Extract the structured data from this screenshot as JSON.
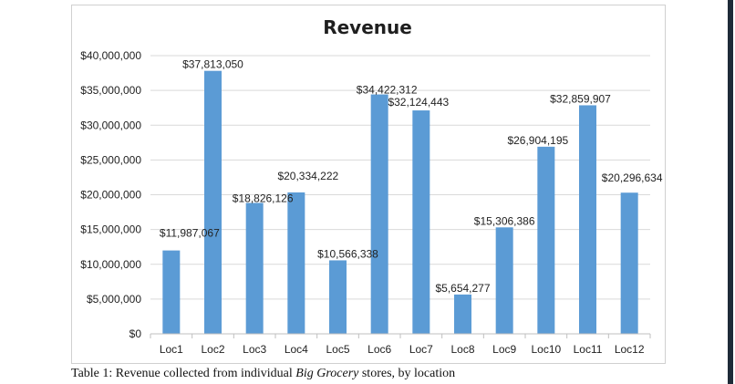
{
  "chart_data": {
    "type": "bar",
    "title": "Revenue",
    "xlabel": "",
    "ylabel": "",
    "categories": [
      "Loc1",
      "Loc2",
      "Loc3",
      "Loc4",
      "Loc5",
      "Loc6",
      "Loc7",
      "Loc8",
      "Loc9",
      "Loc10",
      "Loc11",
      "Loc12"
    ],
    "values": [
      11987067,
      37813050,
      18826126,
      20334222,
      10566338,
      34422312,
      32124443,
      5654277,
      15306386,
      26904195,
      32859907,
      20296634
    ],
    "value_labels": [
      "$11,987,067",
      "$37,813,050",
      "$18,826,126",
      "$20,334,222",
      "$10,566,338",
      "$34,422,312",
      "$32,124,443",
      "$5,654,277",
      "$15,306,386",
      "$26,904,195",
      "$32,859,907",
      "$20,296,634"
    ],
    "ylim": [
      0,
      40000000
    ],
    "yticks": [
      0,
      5000000,
      10000000,
      15000000,
      20000000,
      25000000,
      30000000,
      35000000,
      40000000
    ],
    "ytick_labels": [
      "$0",
      "$5,000,000",
      "$10,000,000",
      "$15,000,000",
      "$20,000,000",
      "$25,000,000",
      "$30,000,000",
      "$35,000,000",
      "$40,000,000"
    ],
    "grid": true,
    "legend": "none",
    "bar_color": "#5b9bd5"
  },
  "caption": {
    "prefix": "Table 1: Revenue collected from individual ",
    "emphasis": "Big Grocery",
    "suffix": " stores, by location"
  }
}
